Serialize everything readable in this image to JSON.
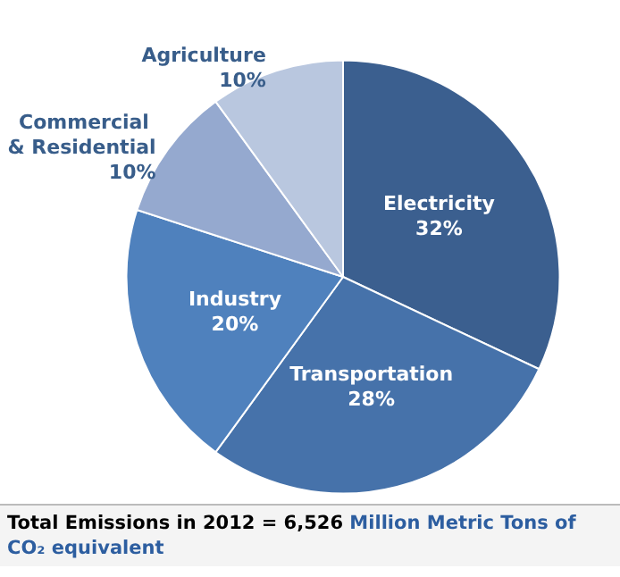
{
  "chart_data": {
    "type": "pie",
    "categories": [
      "Electricity",
      "Transportation",
      "Industry",
      "Commercial & Residential",
      "Agriculture"
    ],
    "values": [
      32,
      28,
      20,
      10,
      10
    ],
    "value_labels": [
      "32%",
      "28%",
      "20%",
      "10%",
      "10%"
    ],
    "colors": [
      "#3b5f8f",
      "#4672aa",
      "#4f81bd",
      "#95a9cf",
      "#b9c7df"
    ],
    "annotations": [
      "Total Emissions in 2012 = 6,526",
      "Million Metric Tons of CO₂ equivalent"
    ]
  }
}
